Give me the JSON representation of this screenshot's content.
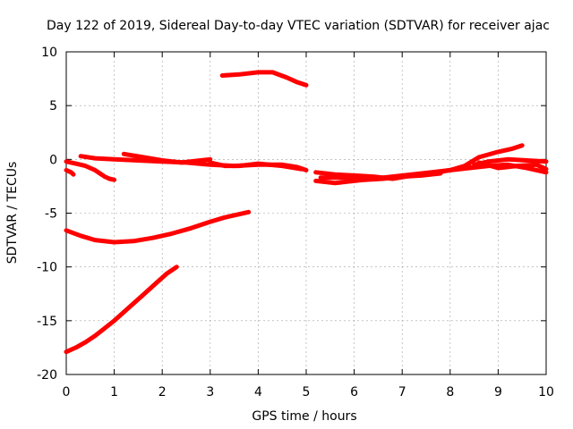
{
  "chart_data": {
    "type": "line",
    "title": "Day 122 of 2019, Sidereal Day-to-day VTEC variation (SDTVAR) for receiver ajac",
    "xlabel": "GPS time / hours",
    "ylabel": "SDTVAR / TECUs",
    "xlim": [
      0,
      10
    ],
    "ylim": [
      -20,
      10
    ],
    "xticks": [
      0,
      1,
      2,
      3,
      4,
      5,
      6,
      7,
      8,
      9,
      10
    ],
    "yticks": [
      -20,
      -15,
      -10,
      -5,
      0,
      5,
      10
    ],
    "xtick_labels": [
      "0",
      "1",
      "2",
      "3",
      "4",
      "5",
      "6",
      "7",
      "8",
      "9",
      "10"
    ],
    "ytick_labels": [
      "-20",
      "-15",
      "-10",
      "-5",
      "0",
      "5",
      "10"
    ],
    "grid": true,
    "color": "#ff0000",
    "series": [
      {
        "x": [
          0.0,
          0.1,
          0.2,
          0.3,
          0.4,
          0.5,
          0.6,
          0.7,
          0.8,
          0.9,
          1.0
        ],
        "y": [
          -0.2,
          -0.3,
          -0.4,
          -0.5,
          -0.6,
          -0.8,
          -1.0,
          -1.3,
          -1.6,
          -1.8,
          -1.9
        ]
      },
      {
        "x": [
          0.0,
          0.1,
          0.15
        ],
        "y": [
          -1.0,
          -1.2,
          -1.4
        ]
      },
      {
        "x": [
          0.3,
          0.6,
          1.0,
          1.5,
          2.0,
          2.5,
          3.0,
          3.5,
          4.0,
          4.5,
          4.8,
          5.0
        ],
        "y": [
          0.3,
          0.1,
          0.0,
          -0.1,
          -0.2,
          -0.3,
          -0.5,
          -0.6,
          -0.5,
          -0.5,
          -0.7,
          -1.0
        ]
      },
      {
        "x": [
          1.2,
          1.6,
          2.0,
          2.4,
          2.8,
          3.0
        ],
        "y": [
          0.5,
          0.2,
          -0.1,
          -0.3,
          -0.1,
          0.0
        ]
      },
      {
        "x": [
          3.0,
          3.3,
          3.6,
          4.0,
          4.5,
          4.9
        ],
        "y": [
          -0.3,
          -0.6,
          -0.6,
          -0.4,
          -0.6,
          -0.9
        ]
      },
      {
        "x": [
          5.2,
          5.6,
          6.0,
          6.4,
          6.8,
          7.2,
          7.6,
          8.0,
          8.4,
          8.8,
          9.2,
          9.6,
          10.0
        ],
        "y": [
          -1.2,
          -1.4,
          -1.5,
          -1.6,
          -1.8,
          -1.5,
          -1.3,
          -1.0,
          -0.8,
          -0.6,
          -0.5,
          -0.8,
          -1.2
        ]
      },
      {
        "x": [
          5.2,
          5.6,
          6.0,
          6.4,
          6.8,
          7.2,
          7.6,
          8.0,
          8.4
        ],
        "y": [
          -2.0,
          -2.2,
          -2.0,
          -1.8,
          -1.6,
          -1.4,
          -1.2,
          -1.0,
          -0.6
        ]
      },
      {
        "x": [
          5.3,
          5.8,
          6.2,
          6.6,
          7.0,
          7.4,
          7.8
        ],
        "y": [
          -1.7,
          -1.7,
          -1.9,
          -1.8,
          -1.6,
          -1.5,
          -1.3
        ]
      },
      {
        "x": [
          8.0,
          8.3,
          8.6,
          9.0,
          9.3,
          9.5
        ],
        "y": [
          -1.0,
          -0.6,
          0.2,
          0.7,
          1.0,
          1.3
        ]
      },
      {
        "x": [
          8.5,
          8.8,
          9.2,
          9.6,
          10.0
        ],
        "y": [
          -0.5,
          -0.2,
          0.0,
          -0.1,
          -0.2
        ]
      },
      {
        "x": [
          8.6,
          9.0,
          9.4,
          9.8,
          10.0
        ],
        "y": [
          -0.3,
          -0.8,
          -0.6,
          -0.5,
          -0.9
        ]
      },
      {
        "x": [
          0.0,
          0.3,
          0.6,
          1.0,
          1.4,
          1.8,
          2.2,
          2.6,
          3.0,
          3.3,
          3.6,
          3.8
        ],
        "y": [
          -6.6,
          -7.1,
          -7.5,
          -7.7,
          -7.6,
          -7.3,
          -6.9,
          -6.4,
          -5.8,
          -5.4,
          -5.1,
          -4.9
        ]
      },
      {
        "x": [
          0.0,
          0.2,
          0.4,
          0.6,
          0.8,
          1.0,
          1.3,
          1.6,
          1.9,
          2.1,
          2.3
        ],
        "y": [
          -17.9,
          -17.5,
          -17.0,
          -16.4,
          -15.7,
          -15.0,
          -13.8,
          -12.6,
          -11.4,
          -10.6,
          -10.0
        ]
      },
      {
        "x": [
          3.25,
          3.6,
          4.0,
          4.3,
          4.6,
          4.8,
          5.0
        ],
        "y": [
          7.8,
          7.9,
          8.1,
          8.1,
          7.6,
          7.2,
          6.9
        ]
      }
    ]
  }
}
